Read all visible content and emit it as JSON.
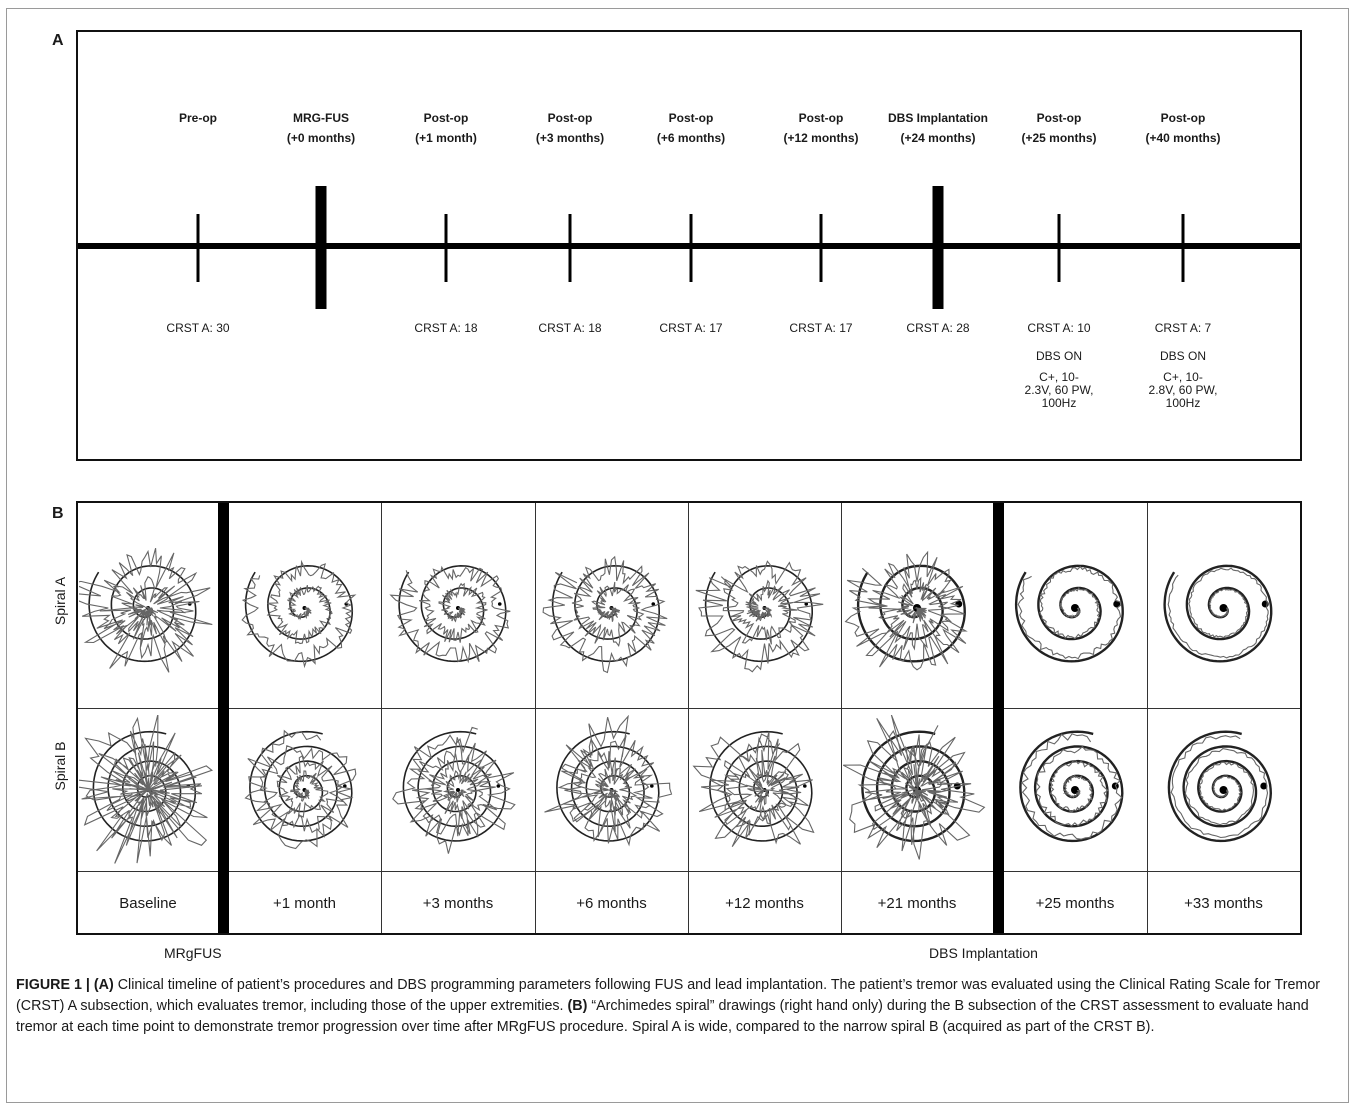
{
  "panel_a": {
    "letter": "A",
    "timepoints": [
      {
        "name": "Pre-op",
        "sub": "",
        "score": "CRST A: 30",
        "dbs": null,
        "major": false
      },
      {
        "name": "MRG-FUS",
        "sub": "(+0 months)",
        "score": "",
        "dbs": null,
        "major": true
      },
      {
        "name": "Post-op",
        "sub": "(+1 month)",
        "score": "CRST A: 18",
        "dbs": null,
        "major": false
      },
      {
        "name": "Post-op",
        "sub": "(+3 months)",
        "score": "CRST A: 18",
        "dbs": null,
        "major": false
      },
      {
        "name": "Post-op",
        "sub": "(+6 months)",
        "score": "CRST A: 17",
        "dbs": null,
        "major": false
      },
      {
        "name": "Post-op",
        "sub": "(+12 months)",
        "score": "CRST A: 17",
        "dbs": null,
        "major": false
      },
      {
        "name": "DBS Implantation",
        "sub": "(+24 months)",
        "score": "CRST A: 28",
        "dbs": null,
        "major": true
      },
      {
        "name": "Post-op",
        "sub": "(+25 months)",
        "score": "CRST A: 10",
        "dbs": {
          "state": "DBS ON",
          "line1": "C+, 10-",
          "line2": "2.3V, 60 PW,",
          "line3": "100Hz"
        },
        "major": false
      },
      {
        "name": "Post-op",
        "sub": "(+40 months)",
        "score": "CRST A: 7",
        "dbs": {
          "state": "DBS ON",
          "line1": "C+, 10-",
          "line2": "2.8V, 60 PW,",
          "line3": "100Hz"
        },
        "major": false
      }
    ]
  },
  "panel_b": {
    "letter": "B",
    "rows": [
      "Spiral A",
      "Spiral B"
    ],
    "columns": [
      "Baseline",
      "+1 month",
      "+3 months",
      "+6 months",
      "+12 months",
      "+21 months",
      "+25 months",
      "+33 months"
    ],
    "tremor_levels": [
      0.9,
      0.35,
      0.45,
      0.55,
      0.6,
      0.75,
      0.1,
      0.05
    ],
    "bottom_labels": {
      "mrgfus": "MRgFUS",
      "dbs": "DBS Implantation"
    }
  },
  "caption": {
    "lead": "FIGURE 1 | ",
    "a_tag": "(A)",
    "a_text": " Clinical timeline of patient’s procedures and DBS programming parameters following FUS and lead implantation. The patient’s tremor was evaluated using the Clinical Rating Scale for Tremor (CRST) A subsection, which evaluates tremor, including those of the upper extremities. ",
    "b_tag": "(B)",
    "b_text": " “Archimedes spiral” drawings (right hand only) during the B subsection of the CRST assessment to evaluate hand tremor at each time point to demonstrate tremor progression over time after MRgFUS procedure. Spiral A is wide, compared to the narrow spiral B (acquired as part of the CRST B)."
  }
}
